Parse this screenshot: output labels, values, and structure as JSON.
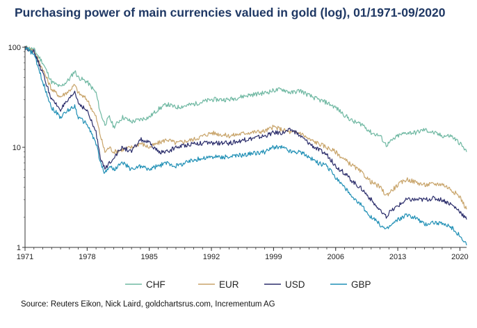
{
  "chart_data": {
    "type": "line",
    "title": "Purchasing power of main currencies valued in gold (log), 01/1971-09/2020",
    "xlabel": "",
    "ylabel": "",
    "y_scale": "log",
    "ylim": [
      1,
      100
    ],
    "xlim": [
      1971.0,
      2020.75
    ],
    "y_ticks": [
      1,
      10,
      100
    ],
    "y_tick_labels": [
      "1",
      "10",
      "100"
    ],
    "x_ticks": [
      1971,
      1978,
      1985,
      1992,
      1999,
      2006,
      2013,
      2020
    ],
    "x_tick_labels": [
      "1971",
      "1978",
      "1985",
      "1992",
      "1999",
      "2006",
      "2013",
      "2020"
    ],
    "grid": false,
    "legend_position": "bottom",
    "series": [
      {
        "name": "CHF",
        "color": "#6fb8a2",
        "x": [
          1971.0,
          1972.0,
          1973.0,
          1974.0,
          1975.0,
          1976.0,
          1976.6,
          1977.0,
          1978.0,
          1979.0,
          1979.5,
          1980.0,
          1980.5,
          1981.0,
          1982.0,
          1983.0,
          1984.0,
          1985.0,
          1986.0,
          1987.0,
          1988.0,
          1990.0,
          1992.0,
          1994.0,
          1996.0,
          1998.0,
          1999.0,
          2000.0,
          2001.0,
          2002.0,
          2003.0,
          2004.0,
          2005.0,
          2006.0,
          2007.0,
          2008.0,
          2009.0,
          2010.0,
          2011.0,
          2011.7,
          2012.0,
          2013.0,
          2014.0,
          2015.0,
          2016.0,
          2017.0,
          2018.0,
          2019.0,
          2020.0,
          2020.75
        ],
        "values": [
          100,
          95,
          70,
          45,
          40,
          48,
          58,
          50,
          45,
          35,
          22,
          17,
          20,
          16,
          20,
          18,
          19,
          20,
          24,
          27,
          25,
          27,
          30,
          30,
          33,
          35,
          37,
          38,
          35,
          37,
          33,
          30,
          28,
          25,
          21,
          18,
          17,
          14,
          13,
          10.5,
          11,
          13,
          14,
          14,
          15,
          14,
          13,
          13,
          11,
          9
        ]
      },
      {
        "name": "EUR",
        "color": "#c8a46a",
        "x": [
          1971.0,
          1972.0,
          1973.0,
          1974.0,
          1975.0,
          1976.0,
          1976.6,
          1977.0,
          1978.0,
          1979.0,
          1979.5,
          1980.0,
          1980.5,
          1981.0,
          1982.0,
          1983.0,
          1984.0,
          1985.0,
          1986.0,
          1987.0,
          1988.0,
          1990.0,
          1992.0,
          1994.0,
          1996.0,
          1998.0,
          1999.0,
          2000.0,
          2001.0,
          2002.0,
          2003.0,
          2004.0,
          2005.0,
          2006.0,
          2007.0,
          2008.0,
          2009.0,
          2010.0,
          2011.0,
          2011.7,
          2012.0,
          2013.0,
          2014.0,
          2015.0,
          2016.0,
          2017.0,
          2018.0,
          2019.0,
          2020.0,
          2020.75
        ],
        "values": [
          100,
          92,
          60,
          38,
          32,
          37,
          42,
          35,
          30,
          20,
          13,
          9,
          10,
          9,
          9.5,
          10,
          11,
          10,
          11,
          12,
          11,
          12,
          14,
          13,
          14,
          14.5,
          16,
          15,
          14,
          14,
          12,
          11,
          10,
          9,
          7.5,
          6.5,
          5.5,
          4.5,
          4,
          3.3,
          3.5,
          4.2,
          4.8,
          4.5,
          4.2,
          4.3,
          4.3,
          3.8,
          3.2,
          2.4
        ]
      },
      {
        "name": "USD",
        "color": "#2b2d6b",
        "x": [
          1971.0,
          1972.0,
          1973.0,
          1974.0,
          1975.0,
          1976.0,
          1976.6,
          1977.0,
          1978.0,
          1979.0,
          1979.5,
          1980.0,
          1980.5,
          1981.0,
          1982.0,
          1983.0,
          1984.0,
          1985.0,
          1986.0,
          1987.0,
          1988.0,
          1990.0,
          1992.0,
          1994.0,
          1996.0,
          1998.0,
          1999.0,
          2000.0,
          2001.0,
          2002.0,
          2003.0,
          2004.0,
          2005.0,
          2006.0,
          2007.0,
          2008.0,
          2009.0,
          2010.0,
          2011.0,
          2011.7,
          2012.0,
          2013.0,
          2014.0,
          2015.0,
          2016.0,
          2017.0,
          2018.0,
          2019.0,
          2020.0,
          2020.75
        ],
        "values": [
          100,
          90,
          55,
          30,
          24,
          30,
          36,
          28,
          23,
          14,
          8,
          6,
          7,
          8,
          10,
          9,
          12,
          11,
          9,
          9,
          10,
          11,
          11,
          11,
          12,
          13,
          14,
          14,
          15,
          13,
          11,
          9.5,
          8.5,
          6.5,
          5.5,
          4.5,
          3.8,
          3,
          2.3,
          2,
          2.2,
          2.6,
          3,
          3,
          3,
          3.1,
          3,
          2.7,
          2.3,
          1.9
        ]
      },
      {
        "name": "GBP",
        "color": "#1f8fb5",
        "x": [
          1971.0,
          1972.0,
          1973.0,
          1974.0,
          1975.0,
          1976.0,
          1976.6,
          1977.0,
          1978.0,
          1979.0,
          1979.5,
          1980.0,
          1980.5,
          1981.0,
          1982.0,
          1983.0,
          1984.0,
          1985.0,
          1986.0,
          1987.0,
          1988.0,
          1990.0,
          1992.0,
          1994.0,
          1996.0,
          1998.0,
          1999.0,
          2000.0,
          2001.0,
          2002.0,
          2003.0,
          2004.0,
          2005.0,
          2006.0,
          2007.0,
          2008.0,
          2009.0,
          2010.0,
          2011.0,
          2011.7,
          2012.0,
          2013.0,
          2014.0,
          2015.0,
          2016.0,
          2017.0,
          2018.0,
          2019.0,
          2020.0,
          2020.75
        ],
        "values": [
          100,
          85,
          45,
          25,
          20,
          24,
          26,
          20,
          17,
          11,
          7,
          5.5,
          6.5,
          6,
          7,
          6,
          6.5,
          6,
          6.5,
          7,
          6.5,
          7.5,
          8,
          8,
          8.5,
          9,
          10,
          10,
          9,
          9,
          8,
          7,
          6.5,
          5,
          4,
          3,
          2.6,
          2,
          1.7,
          1.5,
          1.6,
          1.9,
          2.1,
          2,
          1.7,
          1.8,
          1.7,
          1.6,
          1.3,
          1.05
        ]
      }
    ]
  },
  "source": "Source: Reuters Eikon, Nick Laird, goldchartsrus.com, Incrementum AG"
}
